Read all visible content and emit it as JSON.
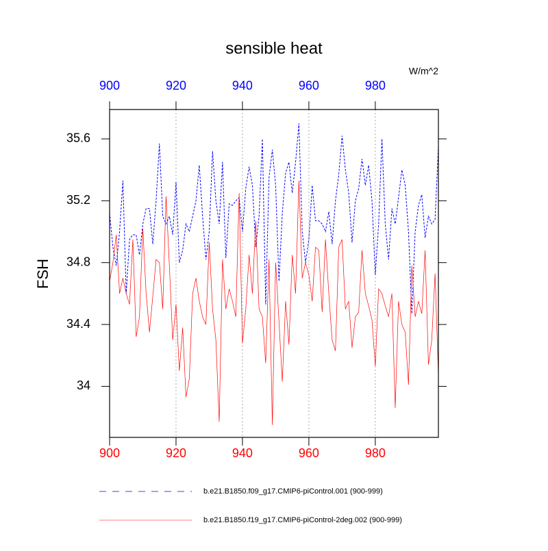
{
  "chart_data": {
    "type": "line",
    "title": "sensible heat",
    "units": "W/m^2",
    "ylabel": "FSH",
    "x": [
      900,
      901,
      902,
      903,
      904,
      905,
      906,
      907,
      908,
      909,
      910,
      911,
      912,
      913,
      914,
      915,
      916,
      917,
      918,
      919,
      920,
      921,
      922,
      923,
      924,
      925,
      926,
      927,
      928,
      929,
      930,
      931,
      932,
      933,
      934,
      935,
      936,
      937,
      938,
      939,
      940,
      941,
      942,
      943,
      944,
      945,
      946,
      947,
      948,
      949,
      950,
      951,
      952,
      953,
      954,
      955,
      956,
      957,
      958,
      959,
      960,
      961,
      962,
      963,
      964,
      965,
      966,
      967,
      968,
      969,
      970,
      971,
      972,
      973,
      974,
      975,
      976,
      977,
      978,
      979,
      980,
      981,
      982,
      983,
      984,
      985,
      986,
      987,
      988,
      989,
      990,
      991,
      992,
      993,
      994,
      995,
      996,
      997,
      998,
      999
    ],
    "series": [
      {
        "name": "b.e21.B1850.f09_g17.CMIP6-piControl.001 (900-999)",
        "color": "#0000ff",
        "dash": true,
        "values": [
          35.12,
          34.9,
          34.78,
          35.0,
          35.33,
          34.6,
          34.95,
          34.98,
          34.98,
          34.85,
          35.05,
          35.15,
          35.15,
          34.92,
          35.2,
          35.57,
          35.1,
          35.05,
          35.1,
          34.98,
          35.32,
          34.8,
          34.88,
          35.05,
          35.0,
          35.1,
          35.2,
          35.43,
          35.1,
          34.82,
          35.0,
          35.52,
          35.2,
          35.05,
          35.45,
          34.83,
          35.18,
          35.17,
          35.2,
          35.22,
          35.0,
          35.28,
          35.42,
          35.3,
          34.9,
          35.1,
          35.6,
          34.53,
          35.35,
          35.53,
          35.3,
          34.68,
          35.12,
          35.38,
          35.45,
          35.25,
          35.45,
          35.7,
          35.0,
          34.8,
          34.95,
          35.3,
          35.07,
          35.07,
          35.05,
          35.0,
          35.13,
          34.92,
          35.2,
          35.37,
          35.62,
          35.4,
          35.25,
          34.93,
          35.2,
          35.28,
          35.47,
          35.3,
          35.43,
          35.2,
          34.72,
          35.05,
          35.6,
          35.05,
          34.82,
          35.15,
          35.05,
          35.22,
          35.4,
          35.3,
          35.0,
          34.47,
          35.0,
          35.17,
          35.24,
          34.96,
          35.1,
          35.05,
          35.08,
          35.55
        ]
      },
      {
        "name": "b.e21.B1850.f19_g17.CMIP6-piControl-2deg.002 (900-999)",
        "color": "#ff0000",
        "dash": false,
        "values": [
          34.68,
          34.8,
          34.98,
          34.6,
          34.7,
          34.6,
          34.53,
          34.95,
          34.32,
          34.45,
          35.02,
          34.6,
          34.35,
          34.58,
          34.82,
          34.8,
          34.5,
          35.23,
          34.78,
          34.3,
          34.53,
          34.1,
          34.38,
          33.93,
          34.05,
          34.6,
          34.7,
          34.55,
          34.45,
          34.4,
          34.93,
          34.5,
          34.3,
          33.77,
          34.82,
          34.5,
          34.63,
          34.55,
          34.45,
          35.25,
          34.28,
          34.5,
          34.85,
          34.6,
          35.07,
          34.5,
          34.45,
          34.15,
          34.82,
          33.75,
          34.8,
          34.42,
          34.03,
          34.55,
          34.27,
          34.85,
          34.6,
          35.33,
          34.7,
          34.8,
          34.72,
          34.55,
          34.9,
          34.88,
          34.48,
          34.95,
          34.6,
          34.3,
          34.23,
          34.9,
          34.95,
          34.5,
          34.55,
          34.25,
          34.45,
          34.48,
          34.88,
          34.6,
          34.52,
          34.43,
          34.13,
          34.63,
          34.6,
          34.52,
          34.45,
          34.6,
          33.86,
          34.55,
          34.4,
          34.35,
          34.01,
          34.78,
          34.45,
          34.55,
          34.47,
          34.88,
          34.14,
          34.3,
          34.73,
          34.07
        ]
      }
    ],
    "xlim": [
      900,
      999
    ],
    "xticks": [
      900,
      920,
      940,
      960,
      980
    ],
    "ylim": [
      33.67,
      35.79
    ],
    "yticks": [
      34.0,
      34.4,
      34.8,
      35.2,
      35.6
    ],
    "grid": "x"
  }
}
